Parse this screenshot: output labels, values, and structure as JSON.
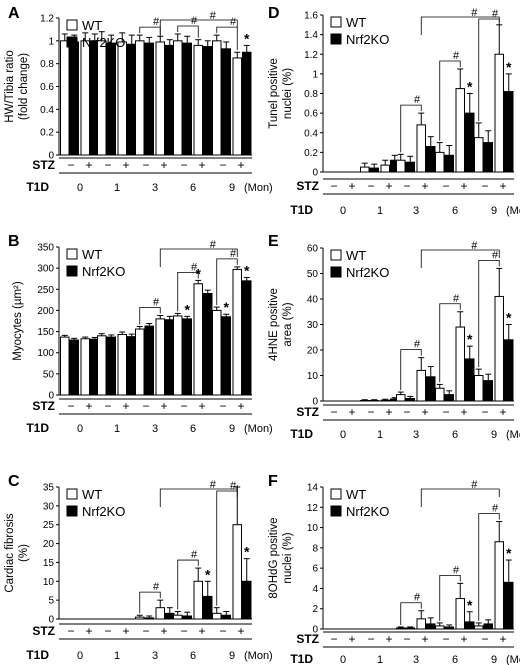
{
  "figure": {
    "stz_label": "STZ",
    "t1d_label": "T1D",
    "unit_label": "(Mon)",
    "months": [
      "0",
      "1",
      "3",
      "6",
      "9"
    ],
    "stz_signs": [
      "−",
      "+"
    ],
    "sig_hash": "#",
    "sig_star": "*"
  },
  "chart_data": [
    {
      "panel": "A",
      "type": "bar",
      "ylabel": "HW/Tibia ratio (fold change)",
      "ylim": [
        0,
        1.2
      ],
      "yticks": [
        "0",
        "0.2",
        "0.4",
        "0.6",
        "0.8",
        "1",
        "1.2"
      ],
      "categories": [
        "0",
        "1",
        "3",
        "6",
        "9"
      ],
      "legend_position": "top-left",
      "series": [
        {
          "name": "WT",
          "color": "#ffffff",
          "values": [
            [
              1.0,
              1.0
            ],
            [
              1.0,
              0.99
            ],
            [
              1.0,
              0.99
            ],
            [
              1.0,
              0.96
            ],
            [
              1.0,
              0.85
            ]
          ],
          "errors": [
            [
              0.06,
              0.07
            ],
            [
              0.08,
              0.08
            ],
            [
              0.05,
              0.05
            ],
            [
              0.06,
              0.05
            ],
            [
              0.05,
              0.05
            ]
          ]
        },
        {
          "name": "Nrf2KO",
          "color": "#000000",
          "values": [
            [
              0.99,
              1.0
            ],
            [
              0.98,
              0.97
            ],
            [
              0.98,
              0.96
            ],
            [
              0.98,
              0.95
            ],
            [
              0.93,
              0.9
            ]
          ],
          "errors": [
            [
              0.06,
              0.06
            ],
            [
              0.07,
              0.08
            ],
            [
              0.05,
              0.05
            ],
            [
              0.06,
              0.05
            ],
            [
              0.06,
              0.06
            ]
          ]
        }
      ],
      "stars": [
        [
          4,
          3
        ]
      ]
    },
    {
      "panel": "B",
      "type": "bar",
      "ylabel": "Myocytes (µm²)",
      "ylim": [
        0,
        350
      ],
      "yticks": [
        "0",
        "50",
        "100",
        "150",
        "200",
        "250",
        "300",
        "350"
      ],
      "categories": [
        "0",
        "1",
        "3",
        "6",
        "9"
      ],
      "legend_position": "top-left",
      "series": [
        {
          "name": "WT",
          "color": "#ffffff",
          "values": [
            [
              137,
              133
            ],
            [
              140,
              143
            ],
            [
              156,
              180
            ],
            [
              187,
              263
            ],
            [
              200,
              297
            ]
          ],
          "errors": [
            [
              4,
              4
            ],
            [
              5,
              6
            ],
            [
              6,
              8
            ],
            [
              6,
              8
            ],
            [
              8,
              6
            ]
          ]
        },
        {
          "name": "Nrf2KO",
          "color": "#000000",
          "values": [
            [
              130,
              132
            ],
            [
              137,
              138
            ],
            [
              163,
              178
            ],
            [
              180,
              240
            ],
            [
              185,
              270
            ]
          ],
          "errors": [
            [
              4,
              4
            ],
            [
              5,
              6
            ],
            [
              6,
              8
            ],
            [
              6,
              8
            ],
            [
              6,
              8
            ]
          ]
        }
      ],
      "stars": [
        [
          3,
          1
        ],
        [
          3,
          2
        ],
        [
          4,
          1
        ],
        [
          4,
          3
        ]
      ]
    },
    {
      "panel": "C",
      "type": "bar",
      "ylabel": "Cardiac fibrosis (%)",
      "ylim": [
        0,
        35
      ],
      "yticks": [
        "0",
        "5",
        "10",
        "15",
        "20",
        "25",
        "30",
        "35"
      ],
      "categories": [
        "0",
        "1",
        "3",
        "6",
        "9"
      ],
      "legend_position": "top-left",
      "series": [
        {
          "name": "WT",
          "color": "#ffffff",
          "values": [
            [
              0,
              0
            ],
            [
              0,
              0
            ],
            [
              0.5,
              3.0
            ],
            [
              1.0,
              10.0
            ],
            [
              1.5,
              25.0
            ]
          ],
          "errors": [
            [
              0,
              0
            ],
            [
              0,
              0
            ],
            [
              0.5,
              2.0
            ],
            [
              1.0,
              3.5
            ],
            [
              1.5,
              10.0
            ]
          ]
        },
        {
          "name": "Nrf2KO",
          "color": "#000000",
          "values": [
            [
              0,
              0
            ],
            [
              0,
              0
            ],
            [
              0.3,
              1.5
            ],
            [
              0.8,
              6.0
            ],
            [
              1.0,
              10.0
            ]
          ],
          "errors": [
            [
              0,
              0
            ],
            [
              0,
              0
            ],
            [
              0.5,
              1.5
            ],
            [
              1.0,
              4.0
            ],
            [
              1.0,
              6.0
            ]
          ]
        }
      ],
      "stars": [
        [
          3,
          3
        ],
        [
          4,
          3
        ]
      ]
    },
    {
      "panel": "D",
      "type": "bar",
      "ylabel": "Tunel positive nuclei (%)",
      "ylim": [
        0,
        1.6
      ],
      "yticks": [
        "0",
        "0.2",
        "0.4",
        "0.6",
        "0.8",
        "1",
        "1.2",
        "1.4",
        "1.6"
      ],
      "categories": [
        "0",
        "1",
        "3",
        "6",
        "9"
      ],
      "legend_position": "top-left",
      "series": [
        {
          "name": "WT",
          "color": "#ffffff",
          "values": [
            [
              0,
              0
            ],
            [
              0.05,
              0.07
            ],
            [
              0.12,
              0.48
            ],
            [
              0.2,
              0.85
            ],
            [
              0.35,
              1.2
            ]
          ],
          "errors": [
            [
              0,
              0
            ],
            [
              0.04,
              0.05
            ],
            [
              0.06,
              0.12
            ],
            [
              0.1,
              0.2
            ],
            [
              0.15,
              0.3
            ]
          ]
        },
        {
          "name": "Nrf2KO",
          "color": "#000000",
          "values": [
            [
              0,
              0
            ],
            [
              0.04,
              0.12
            ],
            [
              0.1,
              0.26
            ],
            [
              0.17,
              0.6
            ],
            [
              0.3,
              0.82
            ]
          ],
          "errors": [
            [
              0,
              0
            ],
            [
              0.04,
              0.05
            ],
            [
              0.06,
              0.1
            ],
            [
              0.1,
              0.2
            ],
            [
              0.12,
              0.18
            ]
          ]
        }
      ],
      "stars": [
        [
          3,
          3
        ],
        [
          4,
          3
        ]
      ]
    },
    {
      "panel": "E",
      "type": "bar",
      "ylabel": "4HNE positive area (%)",
      "ylim": [
        0,
        60
      ],
      "yticks": [
        "0",
        "10",
        "20",
        "30",
        "40",
        "50",
        "60"
      ],
      "categories": [
        "0",
        "1",
        "3",
        "6",
        "9"
      ],
      "legend_position": "top-left",
      "series": [
        {
          "name": "WT",
          "color": "#ffffff",
          "values": [
            [
              0,
              0
            ],
            [
              0.2,
              0.3
            ],
            [
              2.5,
              12.0
            ],
            [
              5.0,
              29.0
            ],
            [
              10.0,
              41.0
            ]
          ],
          "errors": [
            [
              0,
              0
            ],
            [
              0.3,
              0.4
            ],
            [
              1.0,
              5.0
            ],
            [
              1.5,
              6.0
            ],
            [
              2.5,
              11.0
            ]
          ]
        },
        {
          "name": "Nrf2KO",
          "color": "#000000",
          "values": [
            [
              0,
              0
            ],
            [
              0.2,
              0.8
            ],
            [
              1.0,
              9.5
            ],
            [
              2.5,
              16.5
            ],
            [
              8.0,
              24.0
            ]
          ],
          "errors": [
            [
              0,
              0
            ],
            [
              0.3,
              0.5
            ],
            [
              0.8,
              4.0
            ],
            [
              1.5,
              5.0
            ],
            [
              2.5,
              6.0
            ]
          ]
        }
      ],
      "stars": [
        [
          3,
          3
        ],
        [
          4,
          3
        ]
      ]
    },
    {
      "panel": "F",
      "type": "bar",
      "ylabel": "8OHdG positive nuclei (%)",
      "ylim": [
        0,
        14
      ],
      "yticks": [
        "0",
        "2",
        "4",
        "6",
        "8",
        "10",
        "12",
        "14"
      ],
      "categories": [
        "0",
        "1",
        "3",
        "6",
        "9"
      ],
      "legend_position": "top-left",
      "series": [
        {
          "name": "WT",
          "color": "#ffffff",
          "values": [
            [
              0,
              0
            ],
            [
              0,
              0
            ],
            [
              0.1,
              1.0
            ],
            [
              0.3,
              3.0
            ],
            [
              0.3,
              8.6
            ]
          ],
          "errors": [
            [
              0,
              0
            ],
            [
              0,
              0
            ],
            [
              0.1,
              0.8
            ],
            [
              0.3,
              1.5
            ],
            [
              0.3,
              2.0
            ]
          ]
        },
        {
          "name": "Nrf2KO",
          "color": "#000000",
          "values": [
            [
              0,
              0
            ],
            [
              0,
              0
            ],
            [
              0.1,
              0.5
            ],
            [
              0.2,
              0.7
            ],
            [
              0.5,
              4.6
            ]
          ],
          "errors": [
            [
              0,
              0
            ],
            [
              0,
              0
            ],
            [
              0.1,
              0.6
            ],
            [
              0.2,
              1.0
            ],
            [
              0.4,
              2.2
            ]
          ]
        }
      ],
      "stars": [
        [
          3,
          3
        ],
        [
          4,
          3
        ]
      ]
    }
  ]
}
